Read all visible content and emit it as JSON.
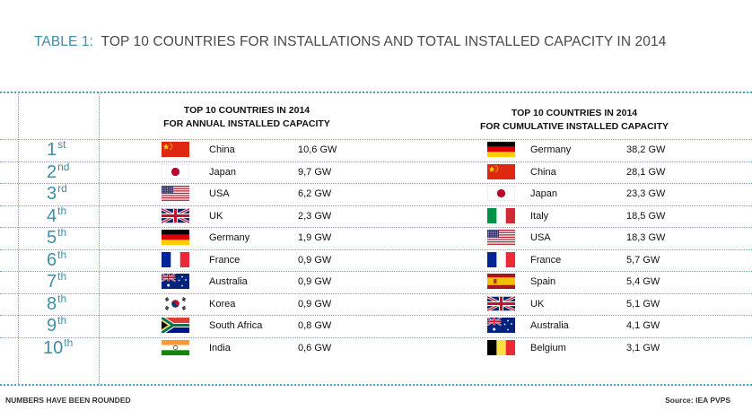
{
  "title": {
    "label": "TABLE 1:",
    "text": "TOP 10 COUNTRIES FOR INSTALLATIONS AND TOTAL INSTALLED CAPACITY IN 2014"
  },
  "annual": {
    "heading_line1": "TOP 10 COUNTRIES IN 2014",
    "heading_line2": "FOR ANNUAL INSTALLED CAPACITY",
    "rows": [
      {
        "country": "China",
        "value": "10,6 GW",
        "flag": "china-flag-icon"
      },
      {
        "country": "Japan",
        "value": "9,7 GW",
        "flag": "japan-flag-icon"
      },
      {
        "country": "USA",
        "value": "6,2 GW",
        "flag": "usa-flag-icon"
      },
      {
        "country": "UK",
        "value": "2,3 GW",
        "flag": "uk-flag-icon"
      },
      {
        "country": "Germany",
        "value": "1,9 GW",
        "flag": "germany-flag-icon"
      },
      {
        "country": "France",
        "value": "0,9 GW",
        "flag": "france-flag-icon"
      },
      {
        "country": "Australia",
        "value": "0,9 GW",
        "flag": "australia-flag-icon"
      },
      {
        "country": "Korea",
        "value": "0,9 GW",
        "flag": "korea-flag-icon"
      },
      {
        "country": "South Africa",
        "value": "0,8 GW",
        "flag": "south-africa-flag-icon"
      },
      {
        "country": "India",
        "value": "0,6 GW",
        "flag": "india-flag-icon"
      }
    ]
  },
  "cumulative": {
    "heading_line1": "TOP 10 COUNTRIES IN 2014",
    "heading_line2": "FOR CUMULATIVE INSTALLED CAPACITY",
    "rows": [
      {
        "country": "Germany",
        "value": "38,2 GW",
        "flag": "germany-flag-icon"
      },
      {
        "country": "China",
        "value": "28,1 GW",
        "flag": "china-flag-icon"
      },
      {
        "country": "Japan",
        "value": "23,3 GW",
        "flag": "japan-flag-icon"
      },
      {
        "country": "Italy",
        "value": "18,5 GW",
        "flag": "italy-flag-icon"
      },
      {
        "country": "USA",
        "value": "18,3 GW",
        "flag": "usa-flag-icon"
      },
      {
        "country": "France",
        "value": "5,7 GW",
        "flag": "france-flag-icon"
      },
      {
        "country": "Spain",
        "value": "5,4 GW",
        "flag": "spain-flag-icon"
      },
      {
        "country": "UK",
        "value": "5,1 GW",
        "flag": "uk-flag-icon"
      },
      {
        "country": "Australia",
        "value": "4,1 GW",
        "flag": "australia-flag-icon"
      },
      {
        "country": "Belgium",
        "value": "3,1 GW",
        "flag": "belgium-flag-icon"
      }
    ]
  },
  "ranks": [
    {
      "num": "1",
      "suffix": "st"
    },
    {
      "num": "2",
      "suffix": "nd"
    },
    {
      "num": "3",
      "suffix": "rd"
    },
    {
      "num": "4",
      "suffix": "th"
    },
    {
      "num": "5",
      "suffix": "th"
    },
    {
      "num": "6",
      "suffix": "th"
    },
    {
      "num": "7",
      "suffix": "th"
    },
    {
      "num": "8",
      "suffix": "th"
    },
    {
      "num": "9",
      "suffix": "th"
    },
    {
      "num": "10",
      "suffix": "th"
    }
  ],
  "colors": {
    "accent": "#3e8ea8",
    "rule": "#58b3c9"
  },
  "footer": {
    "left": "NUMBERS HAVE BEEN ROUNDED",
    "right": "Source: IEA PVPS"
  }
}
